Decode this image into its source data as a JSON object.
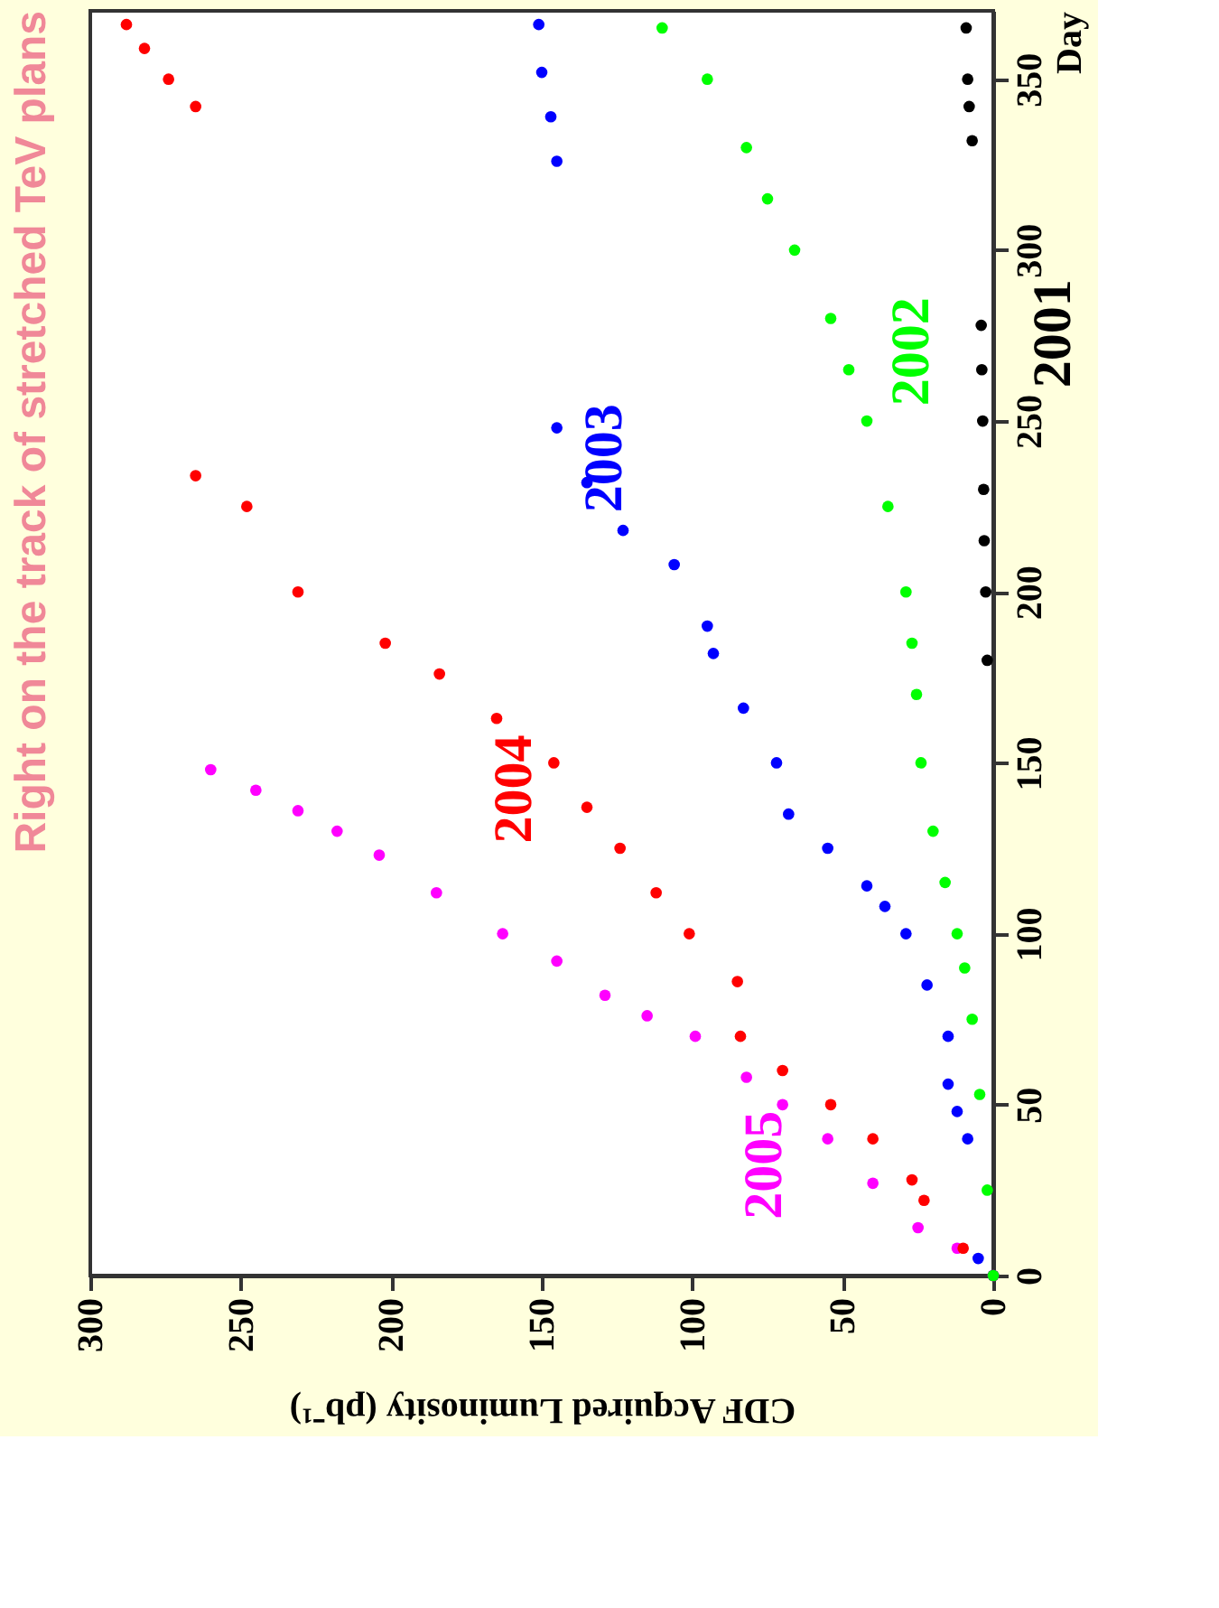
{
  "chart_data": {
    "type": "scatter",
    "title": "Right on the track of stretched TeV plans",
    "xlabel": "CDF Acquired Luminosity (pb⁻¹)",
    "ylabel": "Day",
    "marker": "circle",
    "grid": false,
    "legend": false,
    "xlim": [
      300,
      0
    ],
    "xticks": [
      0,
      50,
      100,
      150,
      200,
      250,
      300
    ],
    "ylim": [
      0,
      370
    ],
    "yticks": [
      0,
      50,
      100,
      150,
      200,
      250,
      300,
      350
    ],
    "series": [
      {
        "name": "2005",
        "color": "#ff00ff",
        "x": [
          0,
          12,
          25,
          40,
          55,
          70,
          82,
          99,
          115,
          129,
          145,
          163,
          185,
          204,
          218,
          231,
          245,
          260
        ],
        "values": [
          0,
          8,
          14,
          27,
          40,
          50,
          58,
          70,
          76,
          82,
          92,
          100,
          112,
          123,
          130,
          136,
          142,
          148
        ]
      },
      {
        "name": "2004",
        "color": "#ff0000",
        "x": [
          0,
          10,
          23,
          27,
          40,
          54,
          70,
          84,
          85,
          101,
          112,
          124,
          135,
          146,
          165,
          184,
          202,
          231,
          248,
          265,
          265,
          274,
          282,
          288
        ],
        "values": [
          0,
          8,
          22,
          28,
          40,
          50,
          60,
          70,
          86,
          100,
          112,
          125,
          137,
          150,
          163,
          176,
          185,
          200,
          225,
          234,
          342,
          350,
          359,
          366
        ]
      },
      {
        "name": "2003",
        "color": "#0000ff",
        "x": [
          0,
          5,
          8.5,
          12,
          15,
          15,
          22,
          29,
          36,
          42,
          55,
          68,
          72,
          83,
          93,
          95,
          106,
          123,
          135,
          145,
          145,
          147,
          150,
          151
        ],
        "values": [
          0,
          5,
          40,
          48,
          56,
          70,
          85,
          100,
          108,
          114,
          125,
          135,
          150,
          166,
          182,
          190,
          208,
          218,
          232,
          248,
          326,
          339,
          352,
          366
        ]
      },
      {
        "name": "2002",
        "color": "#00ff00",
        "x": [
          0,
          2,
          4.5,
          7,
          9.5,
          12,
          16,
          20,
          24,
          25.5,
          27,
          29,
          35,
          42,
          48,
          54,
          66,
          75,
          82,
          95,
          110
        ],
        "values": [
          0,
          25,
          53,
          75,
          90,
          100,
          115,
          130,
          150,
          170,
          185,
          200,
          225,
          250,
          265,
          280,
          300,
          315,
          330,
          350,
          365
        ]
      },
      {
        "name": "2001",
        "color": "#000000",
        "x": [
          2,
          2.5,
          3,
          3.2,
          3.5,
          3.8,
          4,
          7,
          8,
          8.5,
          9
        ],
        "values": [
          180,
          200,
          215,
          230,
          250,
          265,
          278,
          332,
          342,
          350,
          365
        ]
      }
    ]
  }
}
